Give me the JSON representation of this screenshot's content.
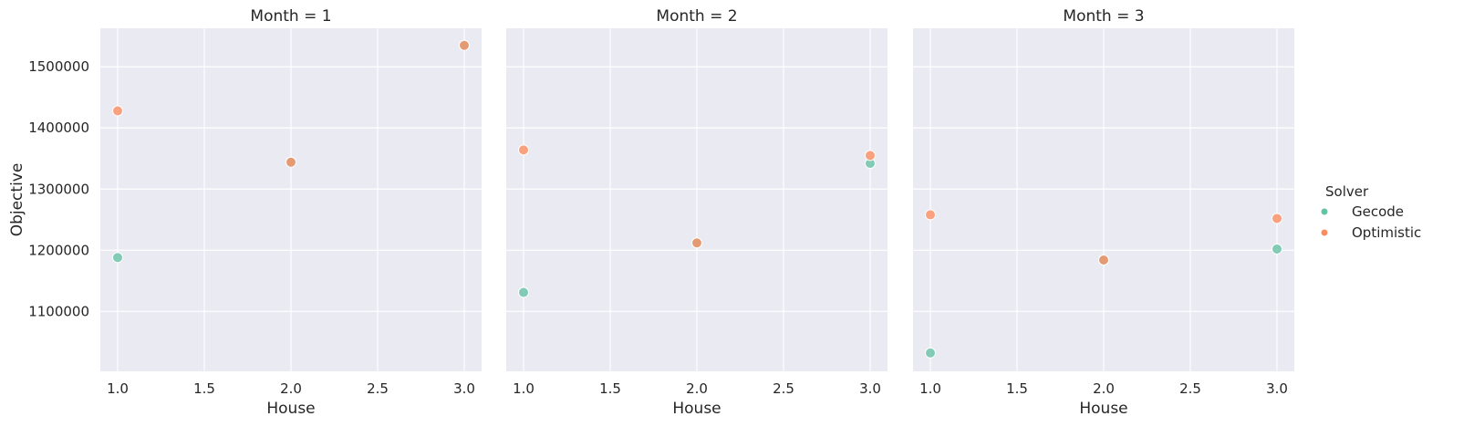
{
  "chart_data": {
    "type": "scatter",
    "facet_variable": "Month",
    "panels": [
      {
        "title": "Month = 1",
        "series": [
          {
            "name": "Gecode",
            "x": [
              1.0,
              2.0,
              3.0
            ],
            "y": [
              1188000,
              1344000,
              1535000
            ]
          },
          {
            "name": "Optimistic",
            "x": [
              1.0,
              2.0,
              3.0
            ],
            "y": [
              1428000,
              1344000,
              1535000
            ]
          }
        ]
      },
      {
        "title": "Month = 2",
        "series": [
          {
            "name": "Gecode",
            "x": [
              1.0,
              2.0,
              3.0
            ],
            "y": [
              1131000,
              1212000,
              1342000
            ]
          },
          {
            "name": "Optimistic",
            "x": [
              1.0,
              2.0,
              3.0
            ],
            "y": [
              1364000,
              1212000,
              1355000
            ]
          }
        ]
      },
      {
        "title": "Month = 3",
        "series": [
          {
            "name": "Gecode",
            "x": [
              1.0,
              2.0,
              3.0
            ],
            "y": [
              1032000,
              1184000,
              1202000
            ]
          },
          {
            "name": "Optimistic",
            "x": [
              1.0,
              2.0,
              3.0
            ],
            "y": [
              1258000,
              1184000,
              1252000
            ]
          }
        ]
      }
    ],
    "xlabel": "House",
    "ylabel": "Objective",
    "xlim": [
      0.9,
      3.1
    ],
    "ylim": [
      1002000,
      1563000
    ],
    "xticks": [
      1.0,
      1.5,
      2.0,
      2.5,
      3.0
    ],
    "xtick_labels": [
      "1.0",
      "1.5",
      "2.0",
      "2.5",
      "3.0"
    ],
    "yticks": [
      1100000,
      1200000,
      1300000,
      1400000,
      1500000
    ],
    "ytick_labels": [
      "1100000",
      "1200000",
      "1300000",
      "1400000",
      "1500000"
    ],
    "grid": true,
    "legend": {
      "title": "Solver",
      "position": "right",
      "entries": [
        "Gecode",
        "Optimistic"
      ]
    },
    "colors": {
      "Gecode": "#66c2a5",
      "Optimistic": "#fc8d62"
    }
  }
}
